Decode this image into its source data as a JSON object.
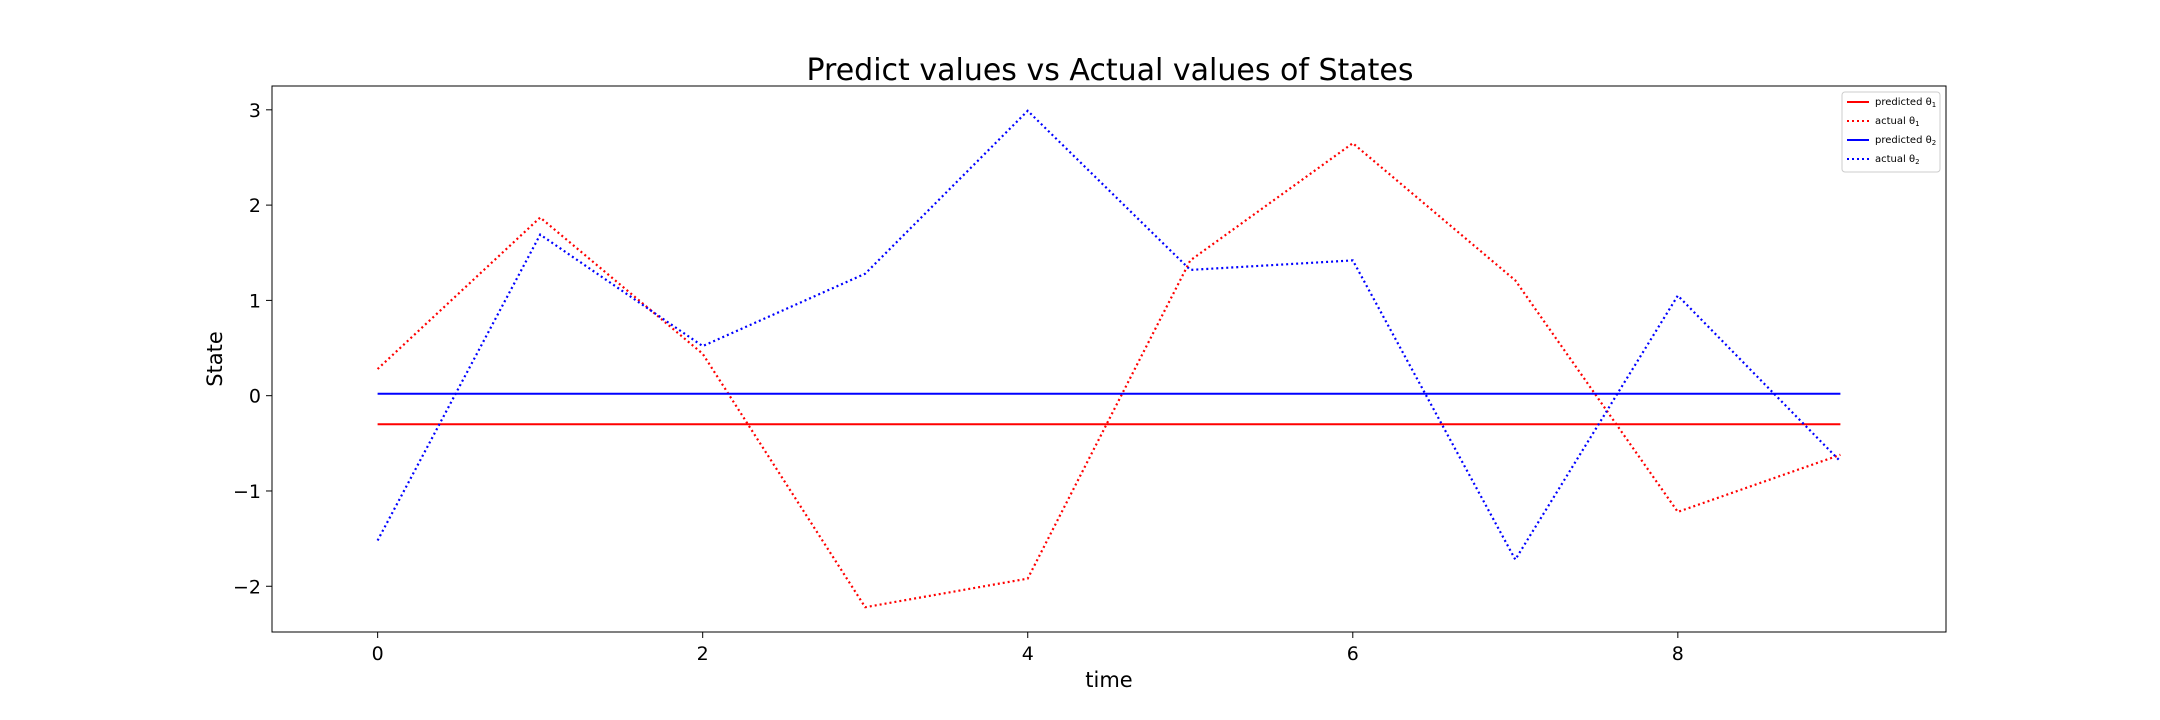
{
  "chart_data": {
    "type": "line",
    "title": "Predict values vs Actual values of States",
    "xlabel": "time",
    "ylabel": "State",
    "x": [
      0,
      1,
      2,
      3,
      4,
      5,
      6,
      7,
      8,
      9
    ],
    "xlim": [
      -0.65,
      9.65
    ],
    "ylim": [
      -2.48,
      3.25
    ],
    "xticks": [
      0,
      2,
      4,
      6,
      8
    ],
    "yticks": [
      -2,
      -1,
      0,
      1,
      2,
      3
    ],
    "grid": false,
    "legend_position": "top-right",
    "series": [
      {
        "name": "predicted θ",
        "sub": "1",
        "color": "#ff0000",
        "dash": "solid",
        "values": [
          -0.3,
          -0.3,
          -0.3,
          -0.3,
          -0.3,
          -0.3,
          -0.3,
          -0.3,
          -0.3,
          -0.3
        ]
      },
      {
        "name": "actual θ",
        "sub": "1",
        "color": "#ff0000",
        "dash": "dotted",
        "values": [
          0.28,
          1.87,
          0.44,
          -2.22,
          -1.92,
          1.42,
          2.65,
          1.21,
          -1.22,
          -0.62
        ]
      },
      {
        "name": "predicted θ",
        "sub": "2",
        "color": "#0000ff",
        "dash": "solid",
        "values": [
          0.02,
          0.02,
          0.02,
          0.02,
          0.02,
          0.02,
          0.02,
          0.02,
          0.02,
          0.02
        ]
      },
      {
        "name": "actual θ",
        "sub": "2",
        "color": "#0000ff",
        "dash": "dotted",
        "values": [
          -1.52,
          1.69,
          0.52,
          1.28,
          2.99,
          1.32,
          1.42,
          -1.72,
          1.05,
          -0.69
        ]
      }
    ]
  }
}
